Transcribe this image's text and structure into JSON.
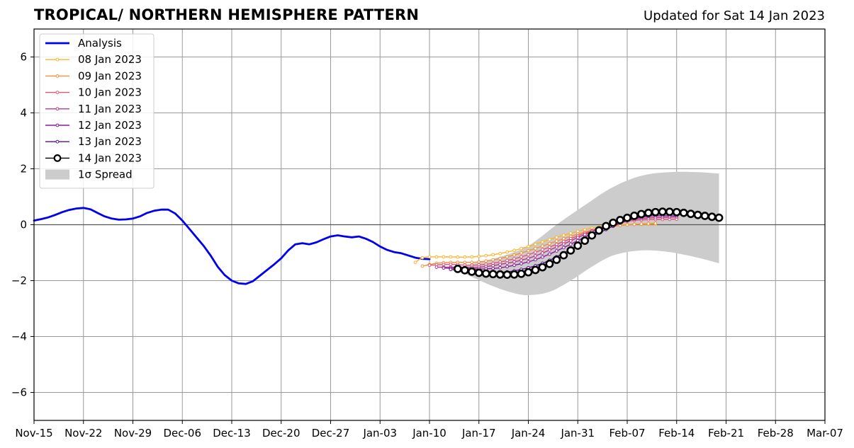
{
  "header": {
    "title": "TROPICAL/ NORTHERN HEMISPHERE PATTERN",
    "updated": "Updated for Sat 14 Jan 2023"
  },
  "chart_data": {
    "type": "line",
    "title": "TROPICAL/ NORTHERN HEMISPHERE PATTERN",
    "xlabel": "",
    "ylabel": "",
    "ylim": [
      -7,
      7
    ],
    "xlim": [
      "2022-11-15",
      "2023-03-07"
    ],
    "grid": true,
    "legend_position": "top-left",
    "xticks": [
      "Nov-15",
      "Nov-22",
      "Nov-29",
      "Dec-06",
      "Dec-13",
      "Dec-20",
      "Dec-27",
      "Jan-03",
      "Jan-10",
      "Jan-17",
      "Jan-24",
      "Jan-31",
      "Feb-07",
      "Feb-14",
      "Feb-21",
      "Feb-28",
      "Mar-07"
    ],
    "xtick_dates": [
      "2022-11-15",
      "2022-11-22",
      "2022-11-29",
      "2022-12-06",
      "2022-12-13",
      "2022-12-20",
      "2022-12-27",
      "2023-01-03",
      "2023-01-10",
      "2023-01-17",
      "2023-01-24",
      "2023-01-31",
      "2023-02-07",
      "2023-02-14",
      "2023-02-21",
      "2023-02-28",
      "2023-03-07"
    ],
    "yticks": [
      6,
      4,
      2,
      0,
      -2,
      -4,
      -6
    ],
    "ytick_labels": [
      "6",
      "4",
      "2",
      "0",
      "−2",
      "−4",
      "−6"
    ],
    "series": [
      {
        "name": "Analysis",
        "color": "#0000ee",
        "style": "analysis",
        "start": "2022-11-15",
        "values": [
          0.15,
          0.2,
          0.26,
          0.35,
          0.45,
          0.53,
          0.58,
          0.6,
          0.55,
          0.42,
          0.3,
          0.22,
          0.18,
          0.19,
          0.22,
          0.3,
          0.42,
          0.5,
          0.54,
          0.54,
          0.4,
          0.15,
          -0.15,
          -0.45,
          -0.75,
          -1.1,
          -1.5,
          -1.8,
          -2.0,
          -2.1,
          -2.12,
          -2.02,
          -1.82,
          -1.62,
          -1.42,
          -1.2,
          -0.92,
          -0.7,
          -0.66,
          -0.7,
          -0.63,
          -0.52,
          -0.42,
          -0.38,
          -0.42,
          -0.45,
          -0.42,
          -0.5,
          -0.62,
          -0.78,
          -0.9,
          -0.98,
          -1.02,
          -1.1,
          -1.18,
          -1.22,
          -1.23
        ]
      },
      {
        "name": "08 Jan 2023",
        "color": "#fcb428",
        "style": "forecast",
        "start": "2023-01-08",
        "anchors": [
          [
            0,
            -1.35
          ],
          [
            1,
            -1.18
          ],
          [
            3,
            -1.15
          ],
          [
            8,
            -1.15
          ],
          [
            12,
            -1.03
          ],
          [
            16,
            -0.78
          ],
          [
            20,
            -0.45
          ],
          [
            24,
            -0.18
          ],
          [
            28,
            -0.02
          ],
          [
            34,
            0.02
          ]
        ]
      },
      {
        "name": "09 Jan 2023",
        "color": "#f28f3c",
        "style": "forecast",
        "start": "2023-01-09",
        "anchors": [
          [
            0,
            -1.48
          ],
          [
            2,
            -1.38
          ],
          [
            4,
            -1.35
          ],
          [
            8,
            -1.33
          ],
          [
            12,
            -1.15
          ],
          [
            16,
            -0.85
          ],
          [
            20,
            -0.5
          ],
          [
            24,
            -0.2
          ],
          [
            28,
            -0.03
          ],
          [
            33,
            0.05
          ]
        ]
      },
      {
        "name": "10 Jan 2023",
        "color": "#e1566e",
        "style": "forecast",
        "start": "2023-01-10",
        "anchors": [
          [
            0,
            -1.45
          ],
          [
            3,
            -1.42
          ],
          [
            6,
            -1.45
          ],
          [
            9,
            -1.38
          ],
          [
            13,
            -1.15
          ],
          [
            17,
            -0.8
          ],
          [
            21,
            -0.4
          ],
          [
            25,
            -0.05
          ],
          [
            29,
            0.15
          ],
          [
            35,
            0.2
          ]
        ]
      },
      {
        "name": "11 Jan 2023",
        "color": "#b8378c",
        "style": "forecast",
        "start": "2023-01-11",
        "anchors": [
          [
            0,
            -1.52
          ],
          [
            3,
            -1.52
          ],
          [
            6,
            -1.52
          ],
          [
            9,
            -1.42
          ],
          [
            13,
            -1.2
          ],
          [
            17,
            -0.8
          ],
          [
            21,
            -0.35
          ],
          [
            25,
            0.05
          ],
          [
            29,
            0.22
          ],
          [
            34,
            0.28
          ]
        ]
      },
      {
        "name": "12 Jan 2023",
        "color": "#8a1c9b",
        "style": "forecast",
        "start": "2023-01-12",
        "anchors": [
          [
            0,
            -1.55
          ],
          [
            3,
            -1.57
          ],
          [
            6,
            -1.58
          ],
          [
            9,
            -1.5
          ],
          [
            13,
            -1.25
          ],
          [
            17,
            -0.82
          ],
          [
            21,
            -0.32
          ],
          [
            25,
            0.1
          ],
          [
            29,
            0.3
          ],
          [
            33,
            0.32
          ]
        ]
      },
      {
        "name": "13 Jan 2023",
        "color": "#5a0f8f",
        "style": "forecast",
        "start": "2023-01-13",
        "anchors": [
          [
            0,
            -1.6
          ],
          [
            3,
            -1.68
          ],
          [
            6,
            -1.72
          ],
          [
            9,
            -1.65
          ],
          [
            13,
            -1.38
          ],
          [
            17,
            -0.88
          ],
          [
            21,
            -0.3
          ],
          [
            25,
            0.15
          ],
          [
            29,
            0.38
          ],
          [
            33,
            0.4
          ]
        ]
      },
      {
        "name": "14 Jan 2023",
        "color": "#000000",
        "style": "current",
        "start": "2023-01-14",
        "anchors": [
          [
            0,
            -1.58
          ],
          [
            3,
            -1.72
          ],
          [
            6,
            -1.78
          ],
          [
            8,
            -1.78
          ],
          [
            10,
            -1.7
          ],
          [
            13,
            -1.4
          ],
          [
            17,
            -0.75
          ],
          [
            21,
            -0.05
          ],
          [
            25,
            0.32
          ],
          [
            28,
            0.45
          ],
          [
            31,
            0.45
          ],
          [
            34,
            0.35
          ],
          [
            37,
            0.25
          ]
        ]
      }
    ],
    "spread": {
      "name": "1σ Spread",
      "color": "#cccccc",
      "start": "2023-01-15",
      "upper_anchors": [
        [
          0,
          -1.45
        ],
        [
          5,
          -1.15
        ],
        [
          9,
          -0.75
        ],
        [
          13,
          0.0
        ],
        [
          17,
          0.7
        ],
        [
          21,
          1.35
        ],
        [
          25,
          1.75
        ],
        [
          29,
          1.88
        ],
        [
          33,
          1.88
        ],
        [
          36,
          1.83
        ]
      ],
      "lower_anchors": [
        [
          0,
          -1.75
        ],
        [
          4,
          -2.2
        ],
        [
          7,
          -2.45
        ],
        [
          9,
          -2.52
        ],
        [
          12,
          -2.4
        ],
        [
          15,
          -2.0
        ],
        [
          18,
          -1.5
        ],
        [
          21,
          -1.1
        ],
        [
          25,
          -0.92
        ],
        [
          29,
          -0.98
        ],
        [
          33,
          -1.18
        ],
        [
          36,
          -1.38
        ]
      ]
    }
  }
}
